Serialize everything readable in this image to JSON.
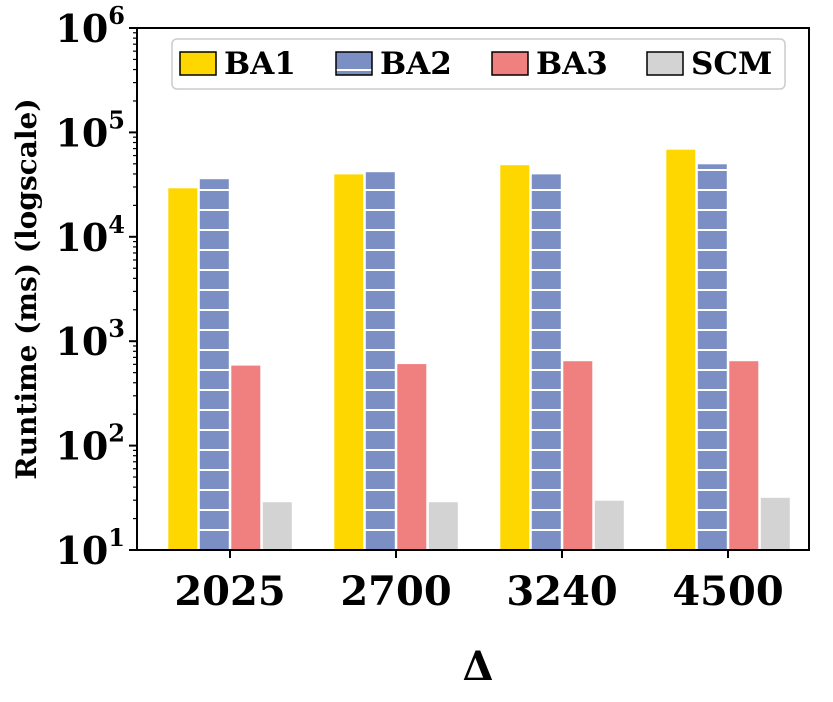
{
  "chart_data": {
    "type": "bar",
    "categories": [
      "2025",
      "2700",
      "3240",
      "4500"
    ],
    "series": [
      {
        "name": "BA1",
        "color": "#FFD700",
        "hatch": "none",
        "values": [
          29500,
          40000,
          49000,
          69000
        ]
      },
      {
        "name": "BA2",
        "color": "#7B8FC4",
        "hatch": "horizontal-lines",
        "values": [
          36000,
          42000,
          40000,
          50000
        ]
      },
      {
        "name": "BA3",
        "color": "#F08080",
        "hatch": "none",
        "values": [
          590,
          610,
          650,
          650
        ]
      },
      {
        "name": "SCM",
        "color": "#D3D3D3",
        "hatch": "none",
        "values": [
          29,
          29,
          30,
          32
        ]
      }
    ],
    "xlabel": "Δ",
    "ylabel": "Runtime (ms) (logscale)",
    "yscale": "log",
    "ylim": [
      10,
      1000000
    ],
    "yticks": [
      {
        "base": "10",
        "exp": "1",
        "value": 10
      },
      {
        "base": "10",
        "exp": "2",
        "value": 100
      },
      {
        "base": "10",
        "exp": "3",
        "value": 1000
      },
      {
        "base": "10",
        "exp": "4",
        "value": 10000
      },
      {
        "base": "10",
        "exp": "5",
        "value": 100000
      },
      {
        "base": "10",
        "exp": "6",
        "value": 1000000
      }
    ],
    "legend_position": "top-right",
    "grid": false
  }
}
